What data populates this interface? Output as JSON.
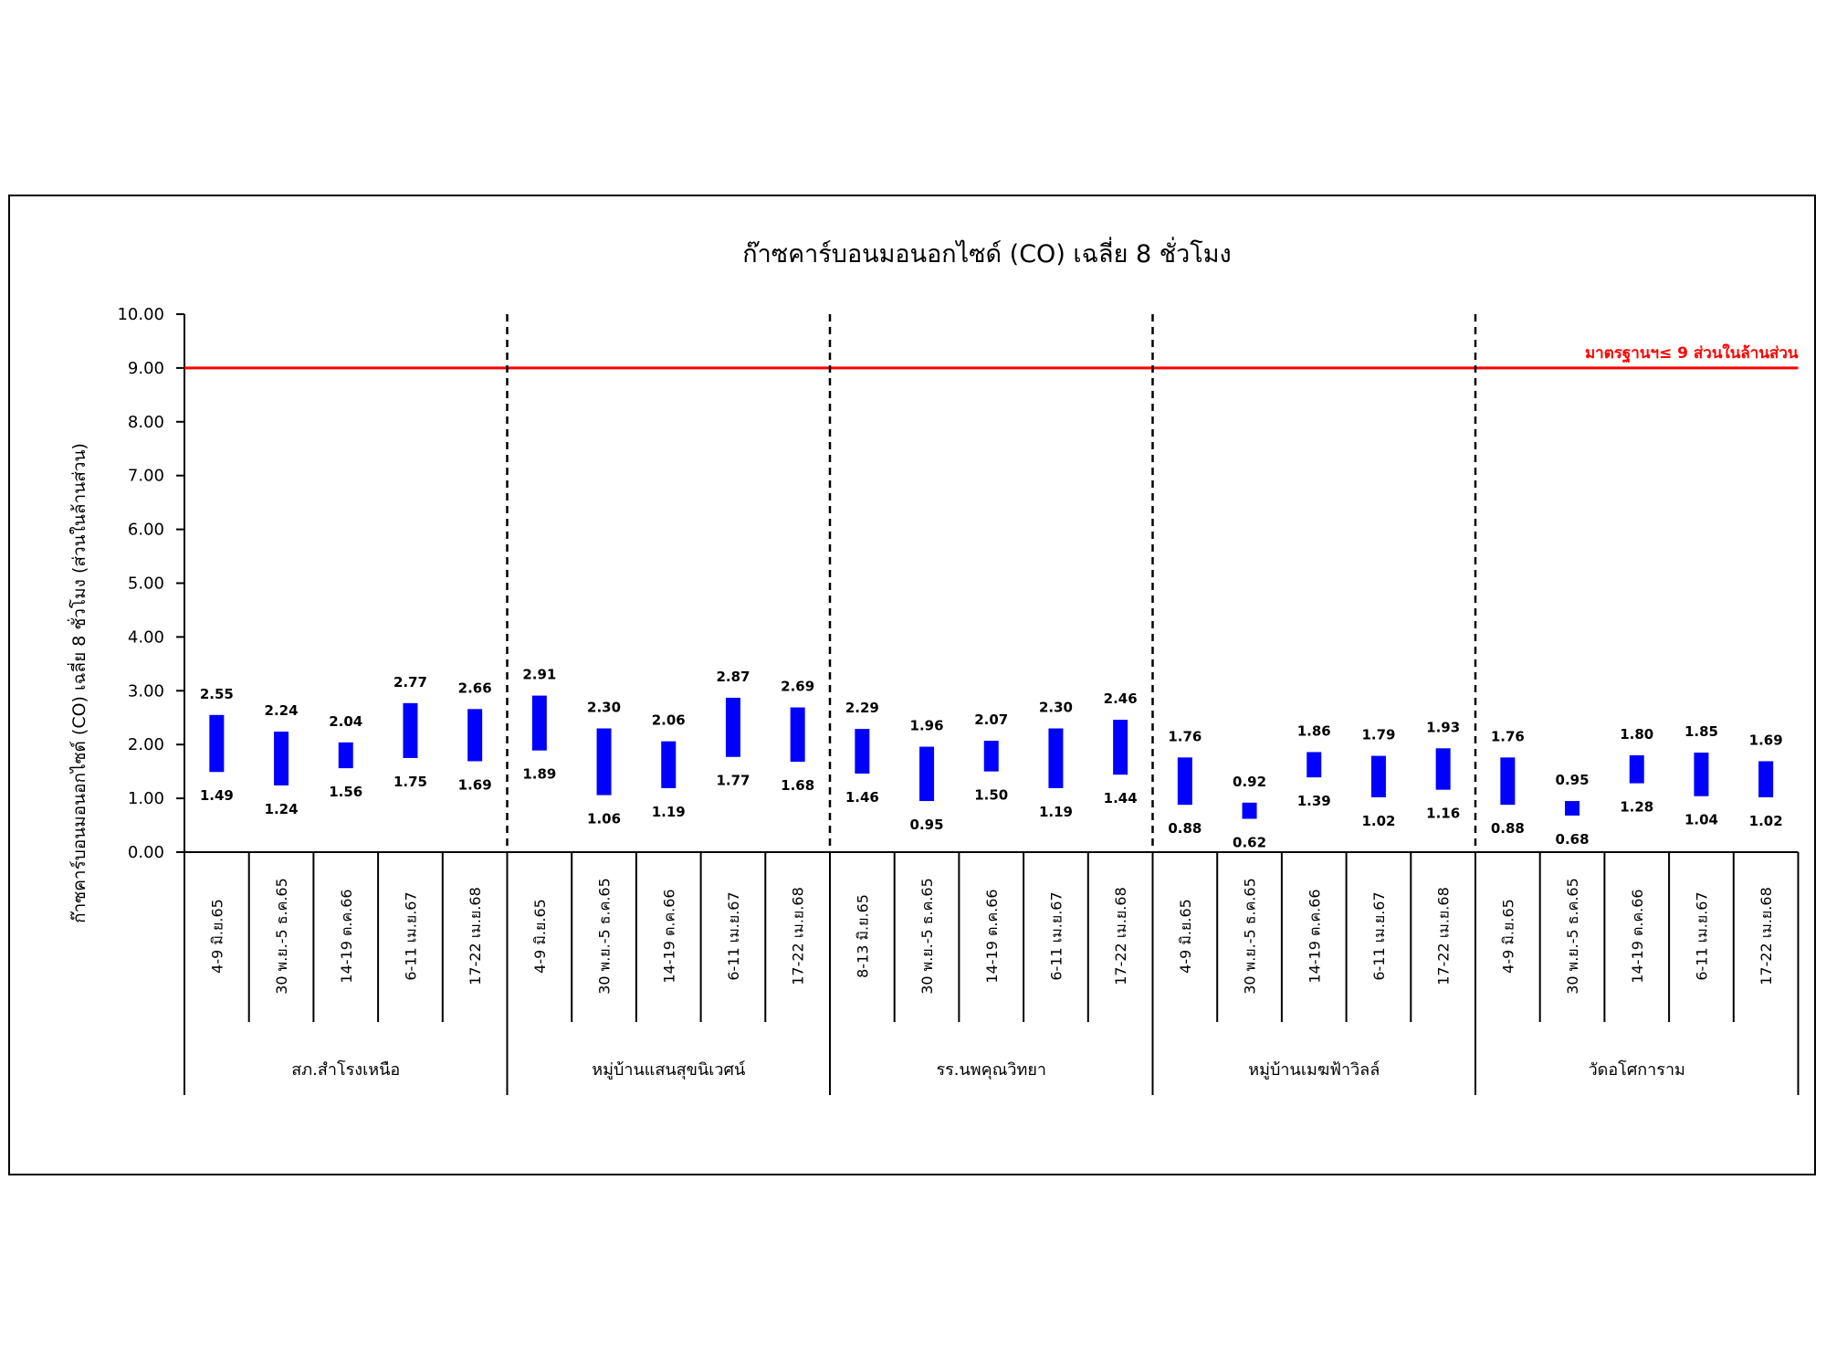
{
  "chart_data": {
    "type": "bar",
    "subtype": "floating-range",
    "title": "ก๊าซคาร์บอนมอนอกไซด์ (CO) เฉลี่ย 8 ชั่วโมง",
    "ylabel": "ก๊าซคาร์บอนมอนอกไซด์ (CO) เฉลี่ย 8 ชั่วโมง (ส่วนในล้านส่วน)",
    "xlabel": "",
    "ylim": [
      0,
      10
    ],
    "yticks": [
      "0.00",
      "1.00",
      "2.00",
      "3.00",
      "4.00",
      "5.00",
      "6.00",
      "7.00",
      "8.00",
      "9.00",
      "10.00"
    ],
    "grid": false,
    "legend": "none",
    "colors": {
      "bar": "#0000ff",
      "standard_line": "#ff0000",
      "label": "#000000"
    },
    "standard": {
      "value": 9,
      "label": "มาตรฐานฯ≤ 9 ส่วนในล้านส่วน"
    },
    "groups": [
      {
        "name": "สภ.สำโรงเหนือ",
        "periods": [
          "4-9 มิ.ย.65",
          "30 พ.ย.-5 ธ.ค.65",
          "14-19 ต.ค.66",
          "6-11 เม.ย.67",
          "17-22 เม.ย.68"
        ],
        "max": [
          2.55,
          2.24,
          2.04,
          2.77,
          2.66
        ],
        "min": [
          1.49,
          1.24,
          1.56,
          1.75,
          1.69
        ],
        "max_labels": [
          "2.55",
          "2.24",
          "2.04",
          "2.77",
          "2.66"
        ],
        "min_labels": [
          "1.49",
          "1.24",
          "1.56",
          "1.75",
          "1.69"
        ]
      },
      {
        "name": "หมู่บ้านแสนสุขนิเวศน์",
        "periods": [
          "4-9 มิ.ย.65",
          "30 พ.ย.-5 ธ.ค.65",
          "14-19 ต.ค.66",
          "6-11 เม.ย.67",
          "17-22 เม.ย.68"
        ],
        "max": [
          2.91,
          2.3,
          2.06,
          2.87,
          2.69
        ],
        "min": [
          1.89,
          1.06,
          1.19,
          1.77,
          1.68
        ],
        "max_labels": [
          "2.91",
          "2.30",
          "2.06",
          "2.87",
          "2.69"
        ],
        "min_labels": [
          "1.89",
          "1.06",
          "1.19",
          "1.77",
          "1.68"
        ]
      },
      {
        "name": "รร.นพคุณวิทยา",
        "periods": [
          "8-13 มิ.ย.65",
          "30 พ.ย.-5 ธ.ค.65",
          "14-19 ต.ค.66",
          "6-11 เม.ย.67",
          "17-22 เม.ย.68"
        ],
        "max": [
          2.29,
          1.96,
          2.07,
          2.3,
          2.46
        ],
        "min": [
          1.46,
          0.95,
          1.5,
          1.19,
          1.44
        ],
        "max_labels": [
          "2.29",
          "1.96",
          "2.07",
          "2.30",
          "2.46"
        ],
        "min_labels": [
          "1.46",
          "0.95",
          "1.50",
          "1.19",
          "1.44"
        ]
      },
      {
        "name": "หมู่บ้านเมฆฟ้าวิลล์",
        "periods": [
          "4-9 มิ.ย.65",
          "30 พ.ย.-5 ธ.ค.65",
          "14-19 ต.ค.66",
          "6-11 เม.ย.67",
          "17-22 เม.ย.68"
        ],
        "max": [
          1.76,
          0.92,
          1.86,
          1.79,
          1.93
        ],
        "min": [
          0.88,
          0.62,
          1.39,
          1.02,
          1.16
        ],
        "max_labels": [
          "1.76",
          "0.92",
          "1.86",
          "1.79",
          "1.93"
        ],
        "min_labels": [
          "0.88",
          "0.62",
          "1.39",
          "1.02",
          "1.16"
        ]
      },
      {
        "name": "วัดอโศการาม",
        "periods": [
          "4-9 มิ.ย.65",
          "30 พ.ย.-5 ธ.ค.65",
          "14-19 ต.ค.66",
          "6-11 เม.ย.67",
          "17-22 เม.ย.68"
        ],
        "max": [
          1.76,
          0.95,
          1.8,
          1.85,
          1.69
        ],
        "min": [
          0.88,
          0.68,
          1.28,
          1.04,
          1.02
        ],
        "max_labels": [
          "1.76",
          "0.95",
          "1.80",
          "1.85",
          "1.69"
        ],
        "min_labels": [
          "0.88",
          "0.68",
          "1.28",
          "1.04",
          "1.02"
        ]
      }
    ]
  }
}
